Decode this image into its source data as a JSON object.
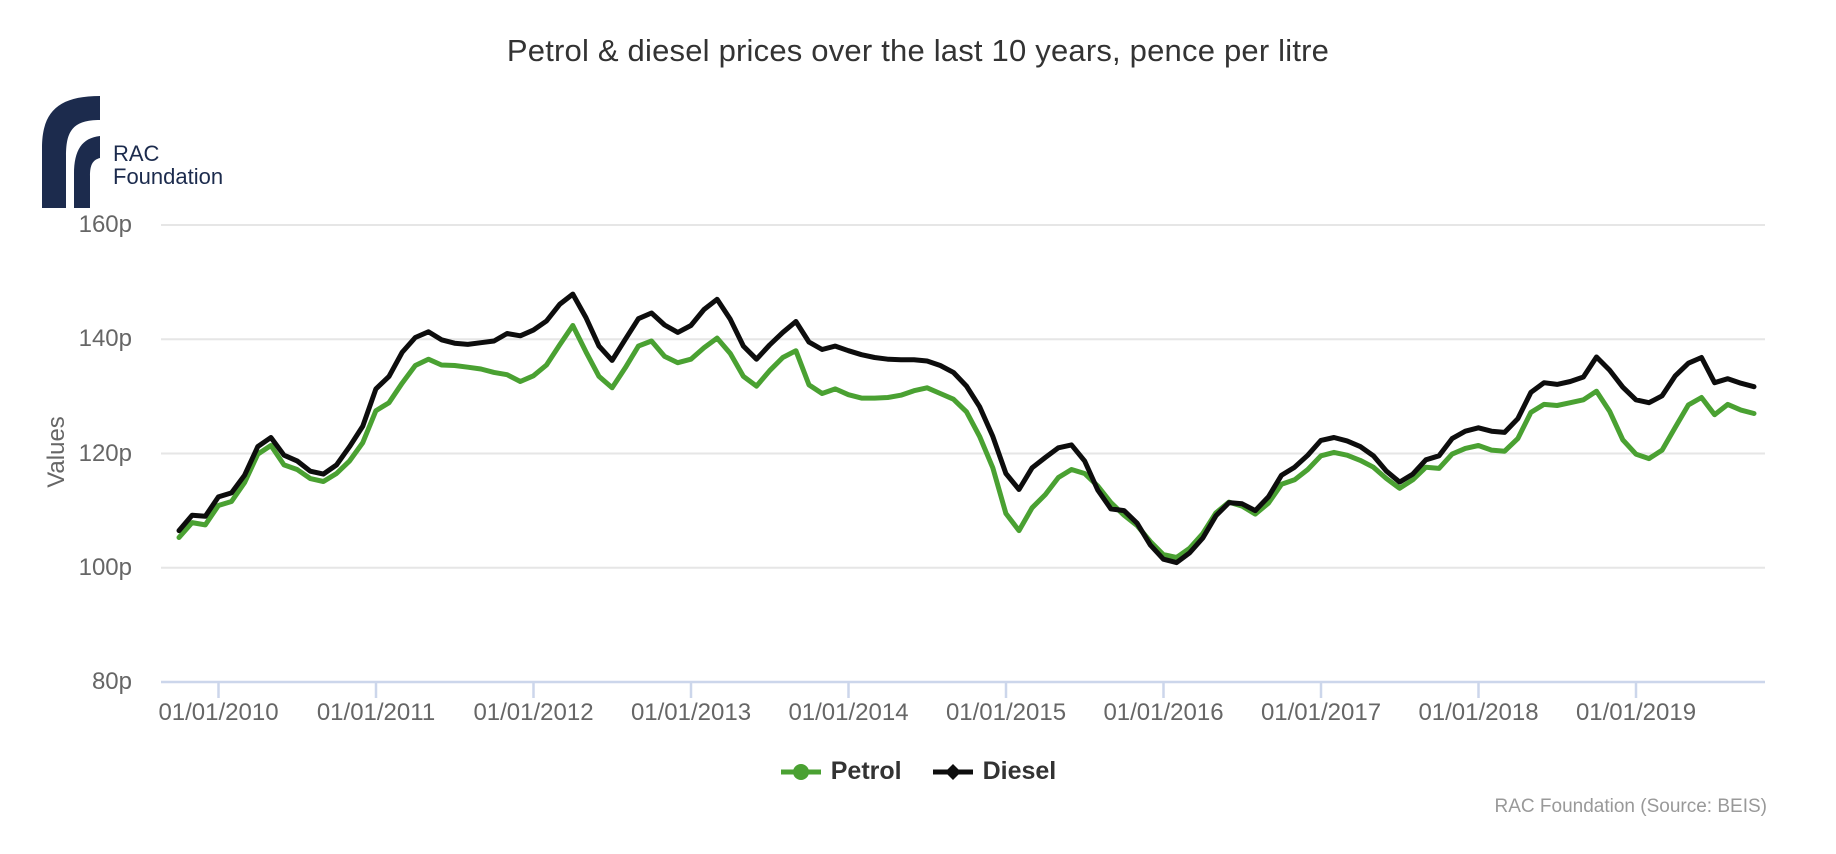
{
  "logo": {
    "line1": "RAC",
    "line2": "Foundation",
    "color": "#1c2b4d"
  },
  "chart_data": {
    "type": "line",
    "title": "Petrol & diesel prices over the last 10 years, pence per litre",
    "ylabel": "Values",
    "credits": "RAC Foundation (Source: BEIS)",
    "ylim": [
      80,
      160
    ],
    "grid": "horizontal",
    "legend_position": "bottom-center",
    "yticks": [
      {
        "label": "160p",
        "value": 160
      },
      {
        "label": "140p",
        "value": 140
      },
      {
        "label": "120p",
        "value": 120
      },
      {
        "label": "100p",
        "value": 100
      },
      {
        "label": "80p",
        "value": 80
      }
    ],
    "xticks": [
      {
        "label": "01/01/2010",
        "year_offset": 0
      },
      {
        "label": "01/01/2011",
        "year_offset": 1
      },
      {
        "label": "01/01/2012",
        "year_offset": 2
      },
      {
        "label": "01/01/2013",
        "year_offset": 3
      },
      {
        "label": "01/01/2014",
        "year_offset": 4
      },
      {
        "label": "01/01/2015",
        "year_offset": 5
      },
      {
        "label": "01/01/2016",
        "year_offset": 6
      },
      {
        "label": "01/01/2017",
        "year_offset": 7
      },
      {
        "label": "01/01/2018",
        "year_offset": 8
      },
      {
        "label": "01/01/2019",
        "year_offset": 9
      }
    ],
    "axis_line_color": "#ccd6eb",
    "gridline_color": "#e6e6e6",
    "x": [
      "2009-10",
      "2009-11",
      "2009-12",
      "2010-01",
      "2010-02",
      "2010-03",
      "2010-04",
      "2010-05",
      "2010-06",
      "2010-07",
      "2010-08",
      "2010-09",
      "2010-10",
      "2010-11",
      "2010-12",
      "2011-01",
      "2011-02",
      "2011-03",
      "2011-04",
      "2011-05",
      "2011-06",
      "2011-07",
      "2011-08",
      "2011-09",
      "2011-10",
      "2011-11",
      "2011-12",
      "2012-01",
      "2012-02",
      "2012-03",
      "2012-04",
      "2012-05",
      "2012-06",
      "2012-07",
      "2012-08",
      "2012-09",
      "2012-10",
      "2012-11",
      "2012-12",
      "2013-01",
      "2013-02",
      "2013-03",
      "2013-04",
      "2013-05",
      "2013-06",
      "2013-07",
      "2013-08",
      "2013-09",
      "2013-10",
      "2013-11",
      "2013-12",
      "2014-01",
      "2014-02",
      "2014-03",
      "2014-04",
      "2014-05",
      "2014-06",
      "2014-07",
      "2014-08",
      "2014-09",
      "2014-10",
      "2014-11",
      "2014-12",
      "2015-01",
      "2015-02",
      "2015-03",
      "2015-04",
      "2015-05",
      "2015-06",
      "2015-07",
      "2015-08",
      "2015-09",
      "2015-10",
      "2015-11",
      "2015-12",
      "2016-01",
      "2016-02",
      "2016-03",
      "2016-04",
      "2016-05",
      "2016-06",
      "2016-07",
      "2016-08",
      "2016-09",
      "2016-10",
      "2016-11",
      "2016-12",
      "2017-01",
      "2017-02",
      "2017-03",
      "2017-04",
      "2017-05",
      "2017-06",
      "2017-07",
      "2017-08",
      "2017-09",
      "2017-10",
      "2017-11",
      "2017-12",
      "2018-01",
      "2018-02",
      "2018-03",
      "2018-04",
      "2018-05",
      "2018-06",
      "2018-07",
      "2018-08",
      "2018-09",
      "2018-10",
      "2018-11",
      "2018-12",
      "2019-01",
      "2019-02",
      "2019-03",
      "2019-04",
      "2019-05",
      "2019-06",
      "2019-07",
      "2019-08",
      "2019-09",
      "2019-10"
    ],
    "series": [
      {
        "name": "Petrol",
        "color": "#4aa132",
        "marker": "circle",
        "values": [
          105.3,
          107.9,
          107.5,
          110.9,
          111.6,
          114.9,
          119.9,
          121.4,
          118.0,
          117.2,
          115.6,
          115.1,
          116.5,
          118.7,
          121.9,
          127.5,
          128.9,
          132.3,
          135.4,
          136.5,
          135.5,
          135.4,
          135.1,
          134.8,
          134.2,
          133.8,
          132.6,
          133.6,
          135.5,
          139.0,
          142.4,
          137.8,
          133.5,
          131.5,
          135.0,
          138.8,
          139.7,
          137.0,
          135.9,
          136.5,
          138.5,
          140.2,
          137.5,
          133.5,
          131.8,
          134.5,
          136.8,
          138.0,
          132.0,
          130.5,
          131.3,
          130.3,
          129.7,
          129.7,
          129.8,
          130.2,
          131.0,
          131.5,
          130.5,
          129.5,
          127.3,
          123.0,
          117.5,
          109.5,
          106.5,
          110.5,
          112.8,
          115.8,
          117.2,
          116.5,
          114.3,
          111.4,
          109.2,
          107.4,
          104.6,
          102.3,
          101.8,
          103.4,
          106.0,
          109.6,
          111.5,
          110.8,
          109.4,
          111.3,
          114.6,
          115.4,
          117.2,
          119.6,
          120.2,
          119.7,
          118.8,
          117.6,
          115.6,
          113.9,
          115.4,
          117.6,
          117.4,
          119.9,
          120.9,
          121.4,
          120.6,
          120.4,
          122.6,
          127.2,
          128.6,
          128.4,
          128.9,
          129.4,
          130.9,
          127.4,
          122.4,
          119.9,
          119.1,
          120.6,
          124.6,
          128.5,
          129.8,
          126.8,
          128.6,
          127.6,
          127.0
        ]
      },
      {
        "name": "Diesel",
        "color": "#0d0d0d",
        "marker": "diamond",
        "values": [
          106.5,
          109.2,
          109.0,
          112.4,
          113.1,
          116.2,
          121.2,
          122.8,
          119.7,
          118.7,
          116.9,
          116.4,
          118.0,
          121.2,
          124.8,
          131.3,
          133.5,
          137.7,
          140.3,
          141.3,
          139.9,
          139.3,
          139.1,
          139.4,
          139.7,
          141.0,
          140.6,
          141.6,
          143.2,
          146.1,
          147.9,
          143.8,
          138.8,
          136.3,
          140.0,
          143.6,
          144.6,
          142.5,
          141.2,
          142.4,
          145.2,
          147.0,
          143.5,
          138.8,
          136.5,
          139.0,
          141.2,
          143.1,
          139.5,
          138.2,
          138.8,
          138.0,
          137.3,
          136.8,
          136.5,
          136.4,
          136.4,
          136.2,
          135.4,
          134.2,
          131.8,
          128.2,
          123.0,
          116.5,
          113.7,
          117.5,
          119.3,
          121.0,
          121.5,
          118.7,
          113.6,
          110.3,
          110.0,
          107.8,
          104.0,
          101.5,
          100.9,
          102.6,
          105.2,
          109.1,
          111.4,
          111.2,
          110.0,
          112.4,
          116.2,
          117.6,
          119.7,
          122.3,
          122.8,
          122.2,
          121.2,
          119.6,
          116.9,
          115.0,
          116.4,
          118.9,
          119.6,
          122.6,
          123.9,
          124.5,
          123.9,
          123.7,
          126.1,
          130.7,
          132.4,
          132.1,
          132.6,
          133.4,
          136.9,
          134.6,
          131.6,
          129.4,
          128.9,
          130.1,
          133.6,
          135.8,
          136.8,
          132.4,
          133.1,
          132.3,
          131.7
        ]
      }
    ]
  }
}
